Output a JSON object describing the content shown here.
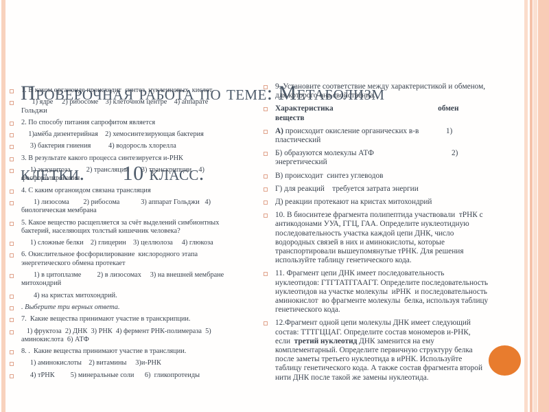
{
  "slide": {
    "title": {
      "line1": "Проверочная работа по теме: Метаболизм",
      "line2": "клетки.       10 класс."
    },
    "accent_colors": {
      "stripe_peach": "#f8d2bd",
      "stripe_peach_dark": "#f5c2a9",
      "circle_orange": "#e87c2e",
      "bullet_outline": "#e0a28a",
      "title_text": "#4e5b6a",
      "body_text": "#39424e"
    },
    "columns": {
      "left": {
        "items": [
          {
            "runs": [
              {
                "t": "1. В каком органоиде происходит  синтез  нуклеиновых  кислот."
              }
            ]
          },
          {
            "runs": [
              {
                "t": "      1) ядре     2) рибосоме    3) клеточном центре    4) аппарате\nГольджи"
              }
            ]
          },
          {
            "runs": [
              {
                "t": "2. По способу питания сапрофитом является"
              }
            ]
          },
          {
            "runs": [
              {
                "t": "    1)амёба дизентерийная    2) хемосинтезирующая бактерия"
              }
            ]
          },
          {
            "runs": [
              {
                "t": "     3) бактерия гниения          4) водоросль хлорелла"
              }
            ]
          },
          {
            "runs": [
              {
                "t": "3. В результате какого процесса синтезируется и-РНК"
              }
            ]
          },
          {
            "runs": [
              {
                "t": "     1) экзоцитоза         2) трансляции       3) транскрипции    4)\nфосфорилирования"
              }
            ]
          },
          {
            "runs": [
              {
                "t": "4. С каким органоидом связана трансляция"
              }
            ]
          },
          {
            "runs": [
              {
                "t": "       1) лизосома        2) рибосома            3) аппарат Гольджи   4)\nбиологическая мембрана"
              }
            ]
          },
          {
            "runs": [
              {
                "t": "5. Какое вещество расщепляется за счёт выделений симбионтных\nбактерий, населяющих толстый кишечник человека?"
              }
            ]
          },
          {
            "runs": [
              {
                "t": "     1) сложные белки    2) глицерин    3) целлюлоза     4) глюкоза"
              }
            ]
          },
          {
            "runs": [
              {
                "t": "6. Окислительное фосфорилирование  кислородного этапа\nэнергетического обмена протекает"
              }
            ]
          },
          {
            "runs": [
              {
                "t": "       1) в цитоплазме         2) в лизосомах     3) на внешней мембране\nмитохондрий"
              }
            ]
          },
          {
            "runs": [
              {
                "t": "       4) на кристах митохондрий."
              }
            ]
          },
          {
            "runs": [
              {
                "t": ". Выберите три верных ответа.",
                "i": true
              }
            ]
          },
          {
            "runs": [
              {
                "t": "7.  Какие вещества принимают участие в транскрипции."
              }
            ]
          },
          {
            "runs": [
              {
                "t": "   1) фруктоза  2) ДНК  3) РНК  4) фермент РНК-полимераза  5)\nаминокислота  6) АТФ"
              }
            ]
          },
          {
            "runs": [
              {
                "t": "8. .  Какие вещества принимают участие в трансляции."
              }
            ]
          },
          {
            "runs": [
              {
                "t": "     1) аминокислоты    2) витамины     3)и-РНК"
              }
            ]
          },
          {
            "runs": [
              {
                "t": "     4) тРНК         5) минеральные соли      6)  гликопротеиды"
              }
            ]
          }
        ]
      },
      "right": {
        "items": [
          {
            "runs": [
              {
                "t": "9. Установите соответствие между характеристикой и обменом,\nдля которого она свойственна."
              }
            ]
          },
          {
            "runs": [
              {
                "t": "Характеристика                                                      обмен\nвеществ",
                "b": true
              }
            ]
          },
          {
            "runs": [
              {
                "t": "А)",
                "b": true
              },
              {
                "t": " происходит окисление органических в-в              1)\nпластический"
              }
            ]
          },
          {
            "runs": [
              {
                "t": "Б) образуются молекулы АТФ                                        2)\nэнергетический"
              }
            ]
          },
          {
            "runs": [
              {
                "t": "В) происходит  синтез углеводов"
              }
            ]
          },
          {
            "runs": [
              {
                "t": "Г) для реакций    требуется затрата энергии"
              }
            ]
          },
          {
            "runs": [
              {
                "t": "Д) реакции протекают на кристах митохондрий"
              }
            ]
          },
          {
            "runs": [
              {
                "t": "10. В биосинтезе фрагмента полипептида участвовали  тРНК с\nантикодонами УУА, ГГЦ, ГАА. Определите нуклеотидную\nпоследовательность участка каждой цепи ДНК, число\nводородных связей в них и аминокислоты, которые\nтранспортировали вышеупомянутые тРНК. Для решения\nиспользуйте таблицу генетического кода."
              }
            ]
          },
          {
            "runs": [
              {
                "t": "11. Фрагмент цепи ДНК имеет последовательность\nнуклеотидов: ГТГТАТГГААГТ. Определите последовательность\nнуклеотидов на участке молекулы  иРНК  и последовательность\nаминокислот  во фрагменте молекулы  белка, используя таблицу\nгенетического кода."
              }
            ]
          },
          {
            "runs": [
              {
                "t": "12.Фрагмент одной цепи молекулы ДНК имеет следующий\nсостав: ТТТГЦЦАГ. Определите состав мономеров и-РНК,\nесли  "
              },
              {
                "t": "третий нуклеотид",
                "b": true
              },
              {
                "t": " ДНК заменится на ему\nкомплементарный. Определите первичную структуру белка\nпосле заметы третьего нуклеотида в иРНК. Используйте\nтаблицу генетического кода. А также состав фрагмента второй\nнити ДНК после такой же замены нуклеотида."
              }
            ]
          }
        ]
      }
    }
  }
}
